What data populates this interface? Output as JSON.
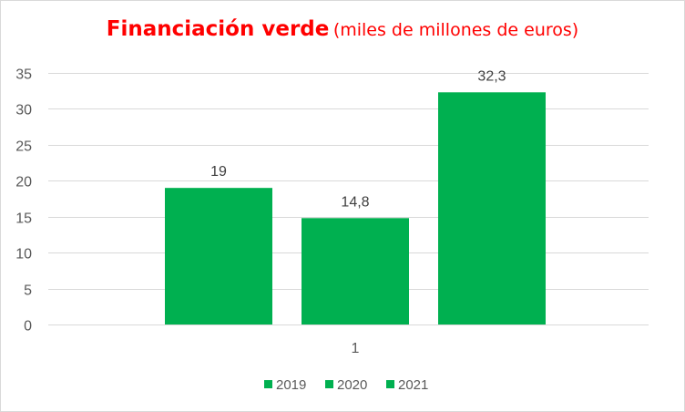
{
  "chart_data": {
    "type": "bar",
    "title": "Financiación verde",
    "subtitle": "(miles de millones de euros)",
    "categories": [
      "1"
    ],
    "series": [
      {
        "name": "2019",
        "values": [
          19
        ],
        "label": "19",
        "color": "#00b050"
      },
      {
        "name": "2020",
        "values": [
          14.8
        ],
        "label": "14,8",
        "color": "#00b050"
      },
      {
        "name": "2021",
        "values": [
          32.3
        ],
        "label": "32,3",
        "color": "#00b050"
      }
    ],
    "xlabel": "",
    "ylabel": "",
    "ylim": [
      0,
      35
    ],
    "yticks": [
      0,
      5,
      10,
      15,
      20,
      25,
      30,
      35
    ],
    "grid": true,
    "legend_position": "bottom",
    "colors": {
      "bar": "#00b050",
      "grid": "#d9d9d9",
      "title": "#ff0000"
    }
  }
}
